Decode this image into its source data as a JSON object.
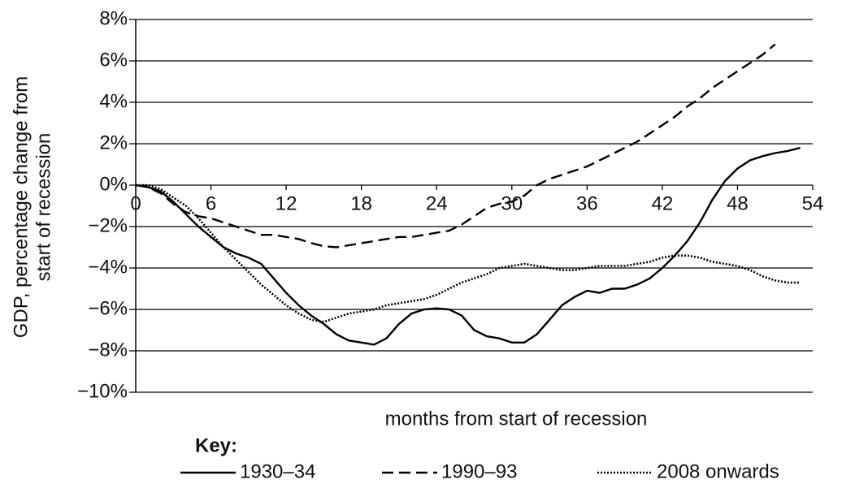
{
  "chart_data": {
    "type": "line",
    "ylabel": [
      "GDP, percentage change from",
      "start of recession"
    ],
    "xlabel": "months from start of recession",
    "legend_title": "Key:",
    "xlim": [
      0,
      54
    ],
    "xticks": [
      0,
      6,
      12,
      18,
      24,
      30,
      36,
      42,
      48,
      54
    ],
    "ylim": [
      -10,
      8
    ],
    "yticks": [
      {
        "value": -10,
        "label": "−10%"
      },
      {
        "value": -8,
        "label": "−8%"
      },
      {
        "value": -6,
        "label": "−6%"
      },
      {
        "value": -4,
        "label": "−4%"
      },
      {
        "value": -2,
        "label": "−2%"
      },
      {
        "value": 0,
        "label": "0%"
      },
      {
        "value": 2,
        "label": "2%"
      },
      {
        "value": 4,
        "label": "4%"
      },
      {
        "value": 6,
        "label": "6%"
      },
      {
        "value": 8,
        "label": "8%"
      }
    ],
    "grid": true,
    "series": [
      {
        "name": "1930–34",
        "color": "#000000",
        "dash": "solid",
        "x": [
          0,
          1,
          2,
          3,
          4,
          5,
          6,
          7,
          8,
          9,
          10,
          11,
          12,
          13,
          14,
          15,
          16,
          17,
          18,
          19,
          20,
          21,
          22,
          23,
          24,
          25,
          26,
          27,
          28,
          29,
          30,
          31,
          32,
          33,
          34,
          35,
          36,
          37,
          38,
          39,
          40,
          41,
          42,
          43,
          44,
          45,
          46,
          47,
          48,
          49,
          50,
          51,
          52,
          53
        ],
        "values": [
          0,
          -0.1,
          -0.3,
          -0.8,
          -1.4,
          -2.0,
          -2.5,
          -3.0,
          -3.3,
          -3.5,
          -3.8,
          -4.5,
          -5.2,
          -5.8,
          -6.3,
          -6.7,
          -7.2,
          -7.5,
          -7.6,
          -7.7,
          -7.4,
          -6.7,
          -6.2,
          -6.0,
          -5.95,
          -6.0,
          -6.3,
          -7.0,
          -7.3,
          -7.4,
          -7.6,
          -7.6,
          -7.2,
          -6.5,
          -5.8,
          -5.4,
          -5.1,
          -5.2,
          -5.0,
          -5.0,
          -4.8,
          -4.5,
          -4.0,
          -3.4,
          -2.7,
          -1.8,
          -0.7,
          0.2,
          0.8,
          1.2,
          1.4,
          1.55,
          1.65,
          1.8
        ]
      },
      {
        "name": "1990–93",
        "color": "#000000",
        "dash": "dashed",
        "x": [
          0,
          1,
          2,
          3,
          4,
          5,
          6,
          7,
          8,
          9,
          10,
          11,
          12,
          13,
          14,
          15,
          16,
          17,
          18,
          19,
          20,
          21,
          22,
          23,
          24,
          25,
          26,
          27,
          28,
          29,
          30,
          31,
          32,
          33,
          34,
          35,
          36,
          37,
          38,
          39,
          40,
          41,
          42,
          43,
          44,
          45,
          46,
          47,
          48,
          49,
          50,
          51
        ],
        "values": [
          0,
          -0.1,
          -0.4,
          -0.9,
          -1.3,
          -1.5,
          -1.6,
          -1.8,
          -2.0,
          -2.2,
          -2.4,
          -2.4,
          -2.5,
          -2.6,
          -2.8,
          -2.95,
          -3.0,
          -2.9,
          -2.8,
          -2.7,
          -2.6,
          -2.5,
          -2.5,
          -2.4,
          -2.3,
          -2.2,
          -1.9,
          -1.5,
          -1.1,
          -0.9,
          -0.8,
          -0.5,
          0.0,
          0.3,
          0.5,
          0.7,
          0.9,
          1.2,
          1.5,
          1.8,
          2.1,
          2.5,
          2.9,
          3.3,
          3.8,
          4.2,
          4.7,
          5.1,
          5.5,
          5.9,
          6.3,
          6.8
        ]
      },
      {
        "name": "2008 onwards",
        "color": "#000000",
        "dash": "dotted",
        "x": [
          0,
          1,
          2,
          3,
          4,
          5,
          6,
          7,
          8,
          9,
          10,
          11,
          12,
          13,
          14,
          15,
          16,
          17,
          18,
          19,
          20,
          21,
          22,
          23,
          24,
          25,
          26,
          27,
          28,
          29,
          30,
          31,
          32,
          33,
          34,
          35,
          36,
          37,
          38,
          39,
          40,
          41,
          42,
          43,
          44,
          45,
          46,
          47,
          48,
          49,
          50,
          51,
          52,
          53
        ],
        "values": [
          0,
          0,
          -0.2,
          -0.6,
          -1.0,
          -1.6,
          -2.3,
          -3.0,
          -3.6,
          -4.2,
          -4.8,
          -5.3,
          -5.8,
          -6.2,
          -6.5,
          -6.6,
          -6.4,
          -6.2,
          -6.1,
          -6.0,
          -5.8,
          -5.7,
          -5.6,
          -5.5,
          -5.3,
          -5.0,
          -4.7,
          -4.5,
          -4.3,
          -4.0,
          -3.9,
          -3.8,
          -3.9,
          -4.0,
          -4.1,
          -4.1,
          -4.0,
          -3.9,
          -3.9,
          -3.9,
          -3.8,
          -3.7,
          -3.5,
          -3.4,
          -3.4,
          -3.5,
          -3.7,
          -3.8,
          -3.9,
          -4.1,
          -4.4,
          -4.6,
          -4.7,
          -4.7
        ]
      }
    ]
  }
}
